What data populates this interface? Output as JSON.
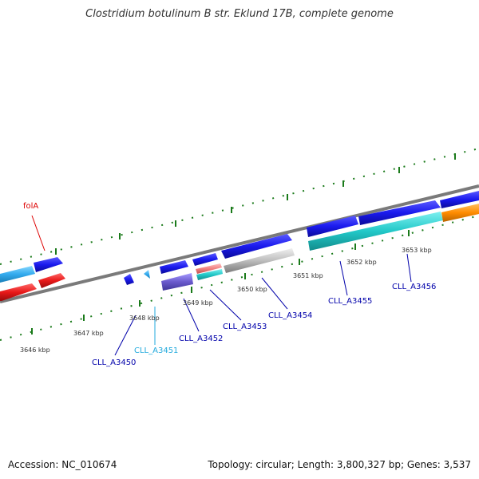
{
  "title": "Clostridium botulinum B str. Eklund 17B, complete genome",
  "footer": {
    "accession": "Accession: NC_010674",
    "topology": "Topology: circular; Length: 3,800,327 bp; Genes: 3,537"
  },
  "colors": {
    "backbone": "#888888",
    "tick_marks": "#1a7a1a",
    "gene_blue": "#1a1aee",
    "gene_light_blue": "#33aaee",
    "gene_cyan": "#22c8c8",
    "gene_red": "#e81818",
    "gene_purple": "#6a5acd",
    "gene_gray": "#bdbdbd",
    "gene_orange": "#ff8c00",
    "gene_pink": "#f08080",
    "label_blue": "#0000aa",
    "label_cyan": "#22aadd",
    "label_red": "#dd0000"
  },
  "kbp_labels": [
    "3646 kbp",
    "3647 kbp",
    "3648 kbp",
    "3649 kbp",
    "3650 kbp",
    "3651 kbp",
    "3652 kbp",
    "3653 kbp"
  ],
  "gene_labels": [
    {
      "text": "folA",
      "color": "label_red"
    },
    {
      "text": "CLL_A3450",
      "color": "label_blue"
    },
    {
      "text": "CLL_A3451",
      "color": "label_cyan"
    },
    {
      "text": "CLL_A3452",
      "color": "label_blue"
    },
    {
      "text": "CLL_A3453",
      "color": "label_blue"
    },
    {
      "text": "CLL_A3454",
      "color": "label_blue"
    },
    {
      "text": "CLL_A3455",
      "color": "label_blue"
    },
    {
      "text": "CLL_A3456",
      "color": "label_blue"
    }
  ]
}
